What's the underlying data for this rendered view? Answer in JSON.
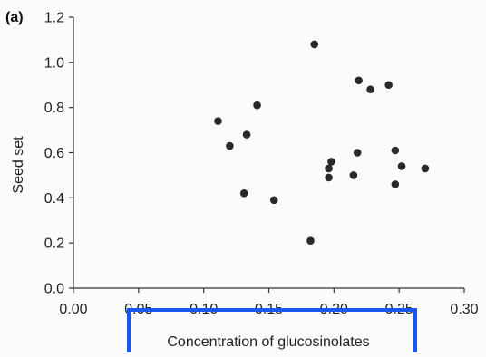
{
  "panel_label": {
    "letter": "(a)"
  },
  "highlight": {
    "color": "#1a56f0"
  },
  "chart_data": {
    "type": "scatter",
    "title": "",
    "xlabel": "Concentration of glucosinolates",
    "ylabel": "Seed set",
    "xlim": [
      0.0,
      0.3
    ],
    "ylim": [
      0.0,
      1.2
    ],
    "xticks": [
      0.0,
      0.05,
      0.1,
      0.15,
      0.2,
      0.25,
      0.3
    ],
    "xtick_labels": [
      "0.00",
      "0.05",
      "0.10",
      "0.15",
      "0.20",
      "0.25",
      "0.30"
    ],
    "yticks": [
      0.0,
      0.2,
      0.4,
      0.6,
      0.8,
      1.0,
      1.2
    ],
    "ytick_labels": [
      "0.0",
      "0.2",
      "0.4",
      "0.6",
      "0.8",
      "1.0",
      "1.2"
    ],
    "grid": false,
    "legend": "none",
    "marker_color": "#2a2a2a",
    "points": [
      {
        "x": 0.111,
        "y": 0.74
      },
      {
        "x": 0.12,
        "y": 0.63
      },
      {
        "x": 0.131,
        "y": 0.42
      },
      {
        "x": 0.133,
        "y": 0.68
      },
      {
        "x": 0.141,
        "y": 0.81
      },
      {
        "x": 0.154,
        "y": 0.39
      },
      {
        "x": 0.182,
        "y": 0.21
      },
      {
        "x": 0.185,
        "y": 1.08
      },
      {
        "x": 0.196,
        "y": 0.49
      },
      {
        "x": 0.196,
        "y": 0.53
      },
      {
        "x": 0.198,
        "y": 0.56
      },
      {
        "x": 0.215,
        "y": 0.5
      },
      {
        "x": 0.218,
        "y": 0.6
      },
      {
        "x": 0.219,
        "y": 0.92
      },
      {
        "x": 0.228,
        "y": 0.88
      },
      {
        "x": 0.242,
        "y": 0.9
      },
      {
        "x": 0.247,
        "y": 0.61
      },
      {
        "x": 0.247,
        "y": 0.46
      },
      {
        "x": 0.252,
        "y": 0.54
      },
      {
        "x": 0.27,
        "y": 0.53
      }
    ]
  }
}
